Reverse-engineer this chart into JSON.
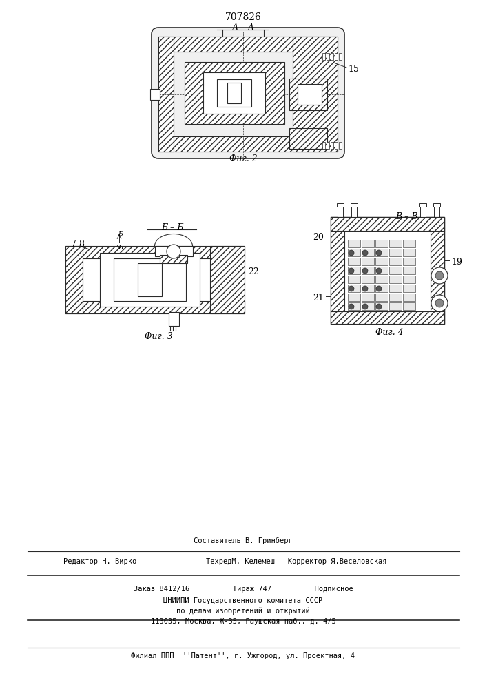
{
  "patent_number": "707826",
  "background_color": "#ffffff",
  "line_color": "#2a2a2a",
  "hatch_color": "#333333",
  "fig_width": 7.07,
  "fig_height": 10.0,
  "fig2_label": "Фиг. 2",
  "fig3_label": "Фиг. 3",
  "fig4_label": "Фиг. 4",
  "section_label_AA": "А – А",
  "section_label_BB_fig3": "Б – Б",
  "section_label_BB_fig4": "В – В",
  "label_15": "15",
  "label_7": "7",
  "label_8": "8",
  "label_22": "22",
  "label_19": "19",
  "label_20": "20",
  "label_21": "21",
  "footer_line1_left": "Редактор Н. Вирко",
  "footer_line1_center": "Составитель В. Гринберг",
  "footer_line2_center": "ТехредМ. Келемеш   Корректор Я.Веселовская",
  "footer_line3": "Заказ 8412/16          Тираж 747          Подписное",
  "footer_line4": "ЦНИИПИ Государственного комитета СССР",
  "footer_line5": "по делам изобретений и открытий",
  "footer_line6": "113035, Москва, Ж-35, Раушская наб., д. 4/5",
  "footer_line7": "Филиал ППП  ''Патент'', г. Ужгород, ул. Проектная, 4"
}
